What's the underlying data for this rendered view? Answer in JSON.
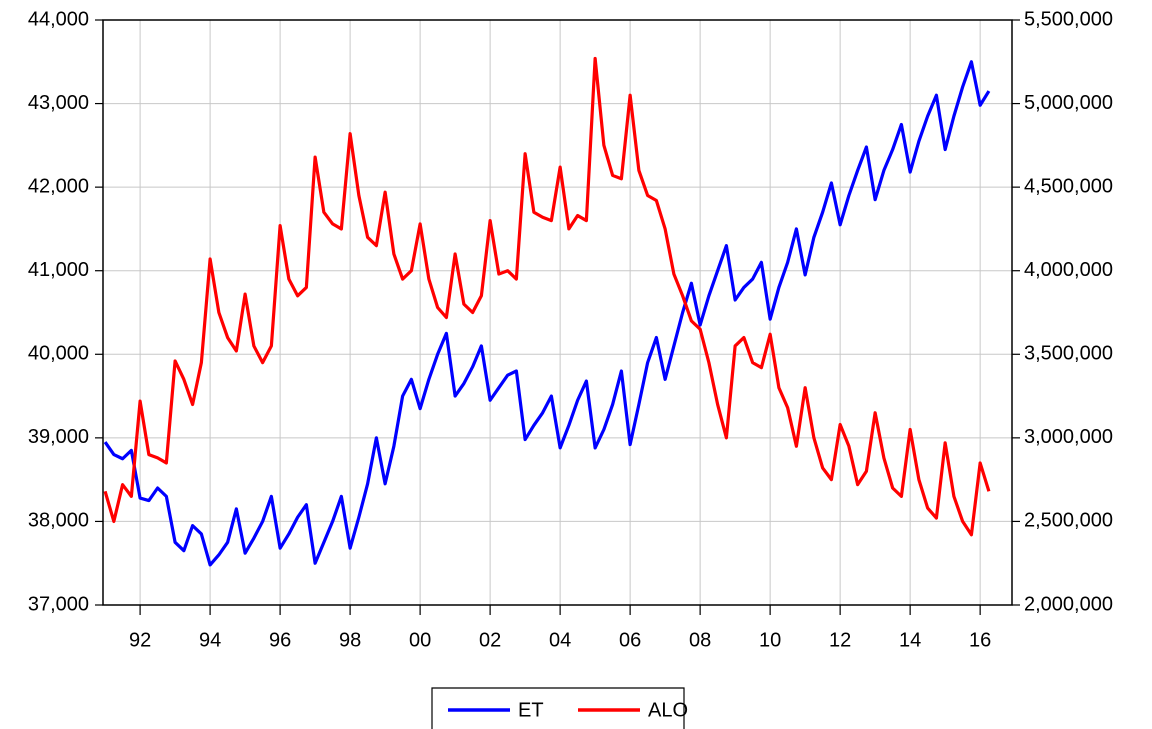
{
  "chart_data": {
    "type": "line",
    "x": [
      1991,
      1991.25,
      1991.5,
      1991.75,
      1992,
      1992.25,
      1992.5,
      1992.75,
      1993,
      1993.25,
      1993.5,
      1993.75,
      1994,
      1994.25,
      1994.5,
      1994.75,
      1995,
      1995.25,
      1995.5,
      1995.75,
      1996,
      1996.25,
      1996.5,
      1996.75,
      1997,
      1997.25,
      1997.5,
      1997.75,
      1998,
      1998.25,
      1998.5,
      1998.75,
      1999,
      1999.25,
      1999.5,
      1999.75,
      2000,
      2000.25,
      2000.5,
      2000.75,
      2001,
      2001.25,
      2001.5,
      2001.75,
      2002,
      2002.25,
      2002.5,
      2002.75,
      2003,
      2003.25,
      2003.5,
      2003.75,
      2004,
      2004.25,
      2004.5,
      2004.75,
      2005,
      2005.25,
      2005.5,
      2005.75,
      2006,
      2006.25,
      2006.5,
      2006.75,
      2007,
      2007.25,
      2007.5,
      2007.75,
      2008,
      2008.25,
      2008.5,
      2008.75,
      2009,
      2009.25,
      2009.5,
      2009.75,
      2010,
      2010.25,
      2010.5,
      2010.75,
      2011,
      2011.25,
      2011.5,
      2011.75,
      2012,
      2012.25,
      2012.5,
      2012.75,
      2013,
      2013.25,
      2013.5,
      2013.75,
      2014,
      2014.25,
      2014.5,
      2014.75,
      2015,
      2015.25,
      2015.5,
      2015.75,
      2016,
      2016.25
    ],
    "series": [
      {
        "name": "ET",
        "color": "#0000ff",
        "axis": "y",
        "values": [
          38950,
          38800,
          38750,
          38850,
          38280,
          38250,
          38400,
          38300,
          37750,
          37650,
          37950,
          37850,
          37480,
          37600,
          37750,
          38150,
          37620,
          37800,
          38000,
          38300,
          37680,
          37850,
          38050,
          38200,
          37500,
          37750,
          38000,
          38300,
          37680,
          38050,
          38450,
          39000,
          38450,
          38900,
          39500,
          39700,
          39350,
          39700,
          40000,
          40250,
          39500,
          39650,
          39850,
          40100,
          39450,
          39600,
          39750,
          39800,
          38980,
          39150,
          39300,
          39500,
          38880,
          39150,
          39450,
          39680,
          38880,
          39100,
          39400,
          39800,
          38920,
          39400,
          39900,
          40200,
          39700,
          40100,
          40500,
          40850,
          40350,
          40700,
          41000,
          41300,
          40650,
          40800,
          40900,
          41100,
          40420,
          40800,
          41100,
          41500,
          40950,
          41400,
          41700,
          42050,
          41550,
          41900,
          42200,
          42480,
          41850,
          42200,
          42450,
          42750,
          42180,
          42550,
          42850,
          43100,
          42450,
          42850,
          43200,
          43500,
          42980,
          43150
        ]
      },
      {
        "name": "ALO",
        "color": "#ff0000",
        "axis": "y2",
        "values": [
          2680000,
          2500000,
          2720000,
          2650000,
          3220000,
          2900000,
          2880000,
          2850000,
          3460000,
          3350000,
          3200000,
          3450000,
          4070000,
          3750000,
          3600000,
          3520000,
          3860000,
          3550000,
          3450000,
          3550000,
          4270000,
          3950000,
          3850000,
          3900000,
          4680000,
          4350000,
          4280000,
          4250000,
          4820000,
          4450000,
          4200000,
          4150000,
          4470000,
          4100000,
          3950000,
          4000000,
          4280000,
          3950000,
          3780000,
          3720000,
          4100000,
          3800000,
          3750000,
          3850000,
          4300000,
          3980000,
          4000000,
          3950000,
          4700000,
          4350000,
          4320000,
          4300000,
          4620000,
          4250000,
          4330000,
          4300000,
          5270000,
          4750000,
          4570000,
          4550000,
          5050000,
          4600000,
          4450000,
          4420000,
          4250000,
          3980000,
          3850000,
          3700000,
          3650000,
          3450000,
          3200000,
          3000000,
          3550000,
          3600000,
          3450000,
          3420000,
          3620000,
          3300000,
          3180000,
          2950000,
          3300000,
          3000000,
          2820000,
          2750000,
          3080000,
          2950000,
          2720000,
          2800000,
          3150000,
          2880000,
          2700000,
          2650000,
          3050000,
          2750000,
          2580000,
          2520000,
          2970000,
          2650000,
          2500000,
          2420000,
          2850000,
          2680000
        ]
      }
    ],
    "xlim": [
      1990.94,
      2016.91
    ],
    "xticks": [
      {
        "value": 1992,
        "label": "92"
      },
      {
        "value": 1994,
        "label": "94"
      },
      {
        "value": 1996,
        "label": "96"
      },
      {
        "value": 1998,
        "label": "98"
      },
      {
        "value": 2000,
        "label": "00"
      },
      {
        "value": 2002,
        "label": "02"
      },
      {
        "value": 2004,
        "label": "04"
      },
      {
        "value": 2006,
        "label": "06"
      },
      {
        "value": 2008,
        "label": "08"
      },
      {
        "value": 2010,
        "label": "10"
      },
      {
        "value": 2012,
        "label": "12"
      },
      {
        "value": 2014,
        "label": "14"
      },
      {
        "value": 2016,
        "label": "16"
      }
    ],
    "ylim": [
      37000,
      44000
    ],
    "yticks": [
      {
        "value": 37000,
        "label": "37,000"
      },
      {
        "value": 38000,
        "label": "38,000"
      },
      {
        "value": 39000,
        "label": "39,000"
      },
      {
        "value": 40000,
        "label": "40,000"
      },
      {
        "value": 41000,
        "label": "41,000"
      },
      {
        "value": 42000,
        "label": "42,000"
      },
      {
        "value": 43000,
        "label": "43,000"
      },
      {
        "value": 44000,
        "label": "44,000"
      }
    ],
    "y2lim": [
      2000000,
      5500000
    ],
    "y2ticks": [
      {
        "value": 2000000,
        "label": "2,000,000"
      },
      {
        "value": 2500000,
        "label": "2,500,000"
      },
      {
        "value": 3000000,
        "label": "3,000,000"
      },
      {
        "value": 3500000,
        "label": "3,500,000"
      },
      {
        "value": 4000000,
        "label": "4,000,000"
      },
      {
        "value": 4500000,
        "label": "4,500,000"
      },
      {
        "value": 5000000,
        "label": "5,000,000"
      },
      {
        "value": 5500000,
        "label": "5,500,000"
      }
    ],
    "grid": true,
    "legend": "bottom"
  }
}
